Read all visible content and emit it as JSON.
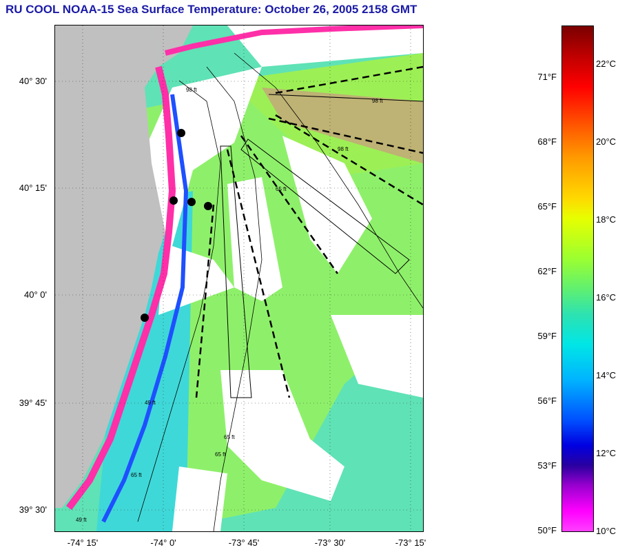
{
  "title": "RU COOL  NOAA-15  Sea Surface Temperature:  October 26, 2005 2158 GMT",
  "lat_labels": [
    "40° 30'",
    "40° 15'",
    "40° 0'",
    "39° 45'",
    "39° 30'"
  ],
  "lon_labels": [
    "-74° 15'",
    "-74° 0'",
    "-73° 45'",
    "-73° 30'",
    "-73° 15'"
  ],
  "fahrenheit_labels": [
    "71°F",
    "68°F",
    "65°F",
    "62°F",
    "59°F",
    "56°F",
    "53°F",
    "50°F"
  ],
  "celsius_labels": [
    "22°C",
    "20°C",
    "18°C",
    "16°C",
    "14°C",
    "12°C",
    "10°C"
  ],
  "depth_labels": [
    "98 ft",
    "98 ft",
    "98 ft",
    "65 ft",
    "65 ft",
    "65 ft",
    "49 ft",
    "49 ft",
    "65 ft"
  ],
  "colors": {
    "land": "#c0c0c0",
    "cloud": "#ffffff",
    "water_warm": "#9cf055",
    "water_mid": "#45eaa6",
    "water_cool": "#2fd8e8",
    "coastal_cold": "#ff2fa8",
    "accent_blue": "#1a1aa6"
  }
}
